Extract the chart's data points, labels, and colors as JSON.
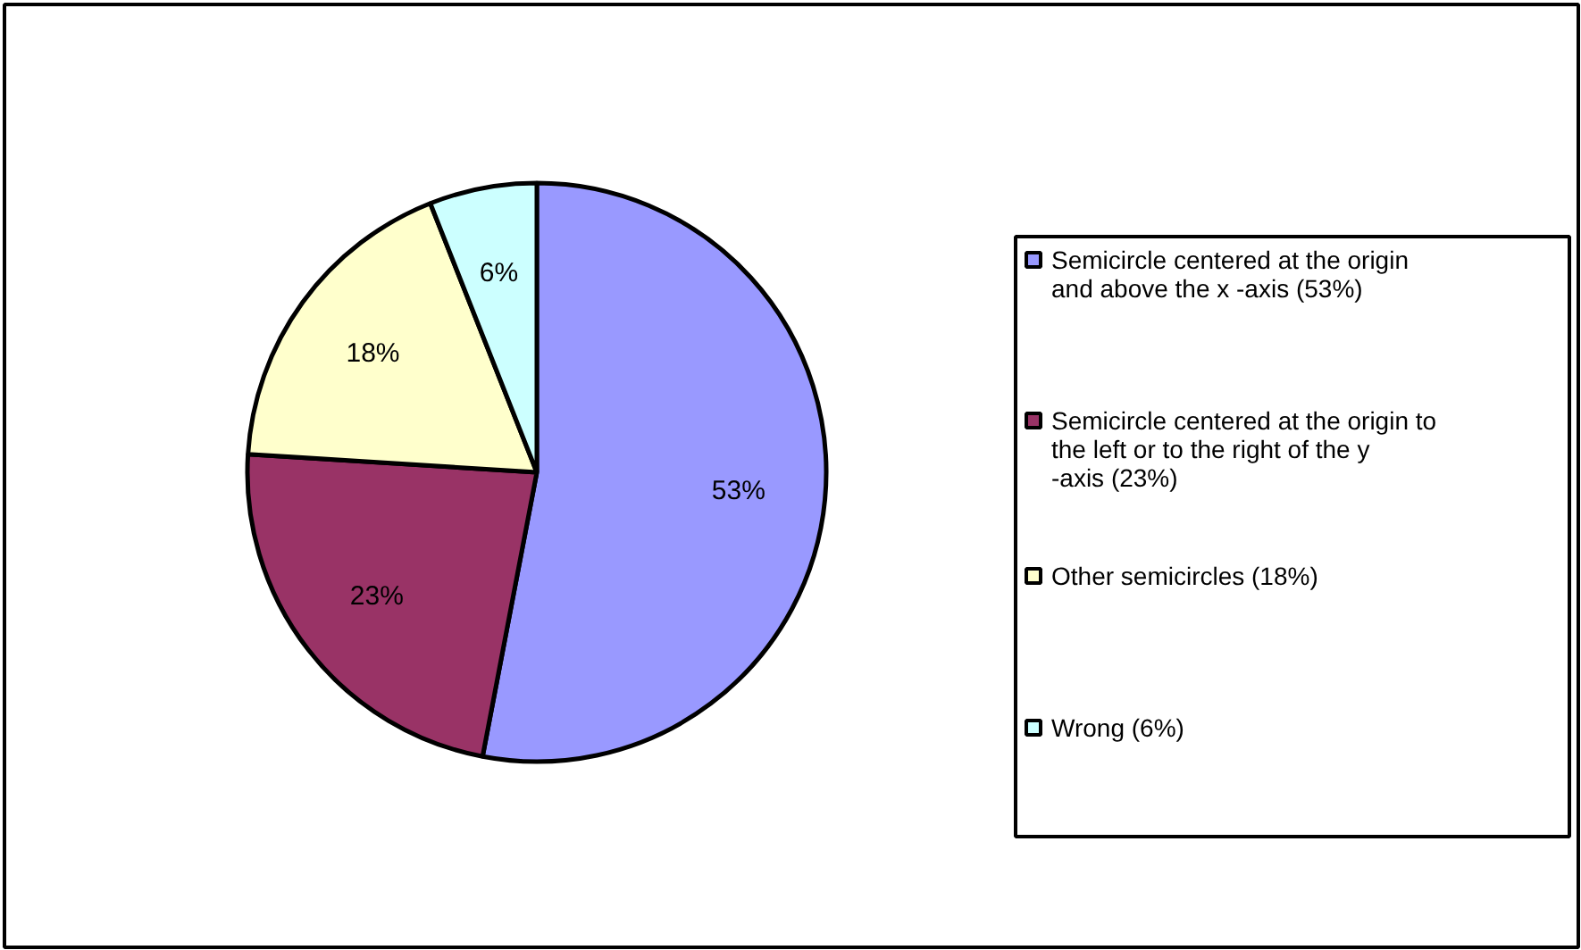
{
  "chart_data": {
    "type": "pie",
    "categories": [
      "Semicircle centered at the origin and above the x -axis (53%)",
      "Semicircle centered at the origin to the left or to the right of the y -axis (23%)",
      "Other semicircles (18%)",
      "Wrong (6%)"
    ],
    "values": [
      53,
      23,
      18,
      6
    ],
    "colors": [
      "#9999ff",
      "#993366",
      "#ffffcc",
      "#ccffff"
    ],
    "value_labels": [
      "53%",
      "23%",
      "18%",
      "6%"
    ],
    "legend": "right"
  }
}
